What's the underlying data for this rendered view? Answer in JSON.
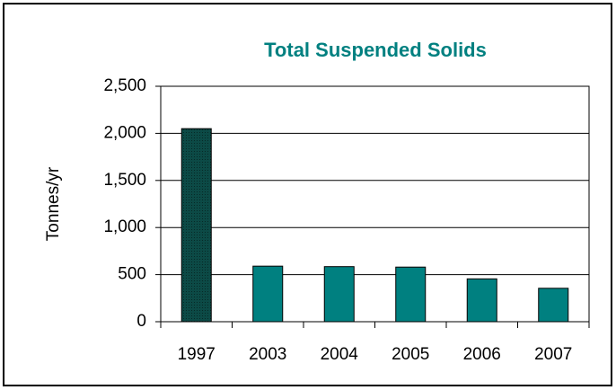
{
  "chart_data": {
    "type": "bar",
    "title": "Total Suspended Solids",
    "ylabel": "Tonnes/yr",
    "categories": [
      "1997",
      "2003",
      "2004",
      "2005",
      "2006",
      "2007"
    ],
    "values": [
      2050,
      590,
      585,
      580,
      455,
      355
    ],
    "colors": [
      "#0c4a46",
      "#008080",
      "#008080",
      "#008080",
      "#008080",
      "#008080"
    ],
    "title_color": "#008080",
    "ylim": [
      0,
      2500
    ],
    "yticks": [
      0,
      500,
      {
        "value": 1000,
        "label": "1,000"
      },
      {
        "value": 1500,
        "label": "1,500"
      },
      {
        "value": 2000,
        "label": "2,000"
      },
      {
        "value": 2500,
        "label": "2,500"
      }
    ],
    "grid": true
  }
}
